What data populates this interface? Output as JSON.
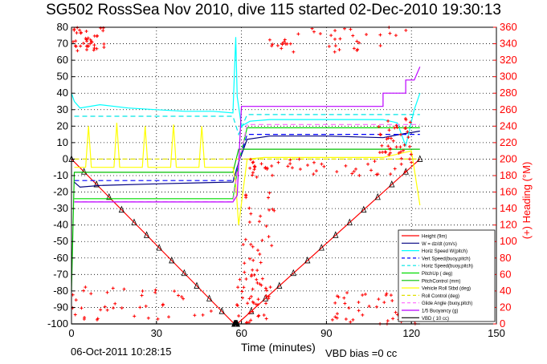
{
  "page": {
    "title": "SG502 RossSea Nov 2010, dive 115 started 02-Dec-2010 19:30:13",
    "timestamp": "06-Oct-2011 10:28:15",
    "vbd_bias": "VBD bias =0 cc"
  },
  "colors": {
    "height": "#ff0000",
    "w": "#000080",
    "horiz_speed": "#00ffff",
    "vert_speed_model": "#0000ff",
    "horiz_speed_model": "#00e5e5",
    "pitch_up": "#00dd00",
    "pitch_control": "#00c000",
    "vehicle_roll": "#ffff00",
    "roll_control": "#e0e000",
    "glide_angle": "#ff66ff",
    "buoyancy": "#bb00ff",
    "vbd": "#000000",
    "heading": "#ff0000",
    "right_axis": "#ff0000"
  },
  "chart_data": {
    "type": "line",
    "xlabel": "Time (minutes)",
    "ylabel_right": "(+) Heading (°M)",
    "xlim": [
      0,
      150
    ],
    "ylim_left": [
      -100,
      80
    ],
    "ylim_right": [
      0,
      360
    ],
    "xticks": [
      0,
      30,
      60,
      90,
      120,
      150
    ],
    "yticks_left": [
      80,
      70,
      60,
      50,
      40,
      30,
      20,
      10,
      0,
      -10,
      -20,
      -30,
      -40,
      -50,
      -60,
      -70,
      -80,
      -90,
      -100
    ],
    "yticks_right": [
      360,
      340,
      320,
      300,
      280,
      260,
      240,
      220,
      200,
      180,
      160,
      140,
      120,
      100,
      80,
      60,
      40,
      20,
      0
    ],
    "grid": true,
    "legend_position": "lower-right",
    "series": [
      {
        "name": "Height (9m)",
        "key": "height",
        "style": "solid",
        "x": [
          0,
          57.5,
          58.5,
          123
        ],
        "y": [
          0,
          -100,
          -100,
          0
        ]
      },
      {
        "name": "W = dz/dt (cm/s)",
        "key": "w",
        "style": "solid",
        "x": [
          1,
          3,
          10,
          30,
          55,
          57,
          59,
          62,
          70,
          90,
          110,
          116,
          123
        ],
        "y": [
          -14,
          -17,
          -16,
          -15,
          -14,
          -14,
          -2,
          12,
          14,
          14,
          13,
          15,
          17
        ]
      },
      {
        "name": "Horiz Speed W(pitch)",
        "key": "horiz_speed",
        "style": "solid",
        "x": [
          0,
          1,
          3,
          10,
          20,
          30,
          40,
          50,
          57,
          58,
          58.5,
          60,
          63,
          70,
          80,
          90,
          100,
          110,
          115,
          118,
          121,
          123
        ],
        "y": [
          40,
          35,
          31,
          33,
          31,
          30,
          29,
          29,
          28,
          74,
          38,
          20,
          23,
          24,
          24,
          24,
          24,
          24,
          22,
          8,
          30,
          40
        ]
      },
      {
        "name": "Vert Speed(buoy,pitch)",
        "key": "vert_speed_model",
        "style": "dashed",
        "x": [
          1,
          57,
          59,
          62,
          123
        ],
        "y": [
          -13,
          -13,
          -2,
          15,
          15
        ]
      },
      {
        "name": "Horiz Speed(buoy,pitch)",
        "key": "horiz_speed_model",
        "style": "dashed",
        "x": [
          1,
          57,
          59,
          62,
          123
        ],
        "y": [
          26,
          26,
          15,
          27,
          27
        ]
      },
      {
        "name": "PitchUp ( deg)",
        "key": "pitch_up",
        "style": "solid",
        "x": [
          1,
          57,
          59,
          62,
          123
        ],
        "y": [
          -24,
          -24,
          -2,
          19,
          19
        ]
      },
      {
        "name": "PitchControl (mm)",
        "key": "pitch_control",
        "style": "solid",
        "x": [
          0,
          1,
          57,
          59,
          123
        ],
        "y": [
          -80,
          -8,
          -8,
          6,
          6
        ]
      },
      {
        "name": "Vehicle Roll Stbd (deg)",
        "key": "vehicle_roll",
        "style": "solid",
        "x": [
          1,
          5,
          6,
          7,
          15,
          16,
          17,
          25,
          26,
          27,
          35,
          36,
          37,
          45,
          46,
          47,
          55,
          57,
          58,
          59,
          62,
          68,
          70,
          80,
          90,
          100,
          110,
          120,
          123
        ],
        "y": [
          -5,
          -5,
          20,
          -5,
          -5,
          22,
          -5,
          -5,
          20,
          -5,
          -5,
          21,
          -5,
          -5,
          20,
          -5,
          -5,
          -5,
          -15,
          -40,
          0,
          1,
          1,
          1,
          1,
          1,
          1,
          5,
          -28
        ]
      },
      {
        "name": "Roll Control (deg)",
        "key": "roll_control",
        "style": "dashed",
        "x": [
          1,
          57,
          59,
          123
        ],
        "y": [
          0,
          0,
          0,
          0
        ]
      },
      {
        "name": "Glide Angle (buoy,pitch)",
        "key": "glide_angle",
        "style": "dashed",
        "x": [
          1,
          57,
          59,
          62,
          123
        ],
        "y": [
          -26,
          -26,
          -3,
          21,
          21
        ]
      },
      {
        "name": "1/5 Buoyancy (g)",
        "key": "buoyancy",
        "style": "solid",
        "x": [
          1,
          57,
          58.5,
          60,
          110,
          110,
          118,
          118,
          121,
          123
        ],
        "y": [
          -26,
          -26,
          -22,
          32,
          32,
          40,
          40,
          48,
          48,
          56
        ]
      },
      {
        "name": "VBD ( 10 cc)",
        "key": "vbd",
        "style": "solid",
        "x": [
          0,
          123
        ],
        "y": [
          -100,
          -100
        ]
      }
    ],
    "heading_description": "red + markers on right axis, scattered near 350° and near 10-50° during dive, near 180-340° after apogee"
  }
}
